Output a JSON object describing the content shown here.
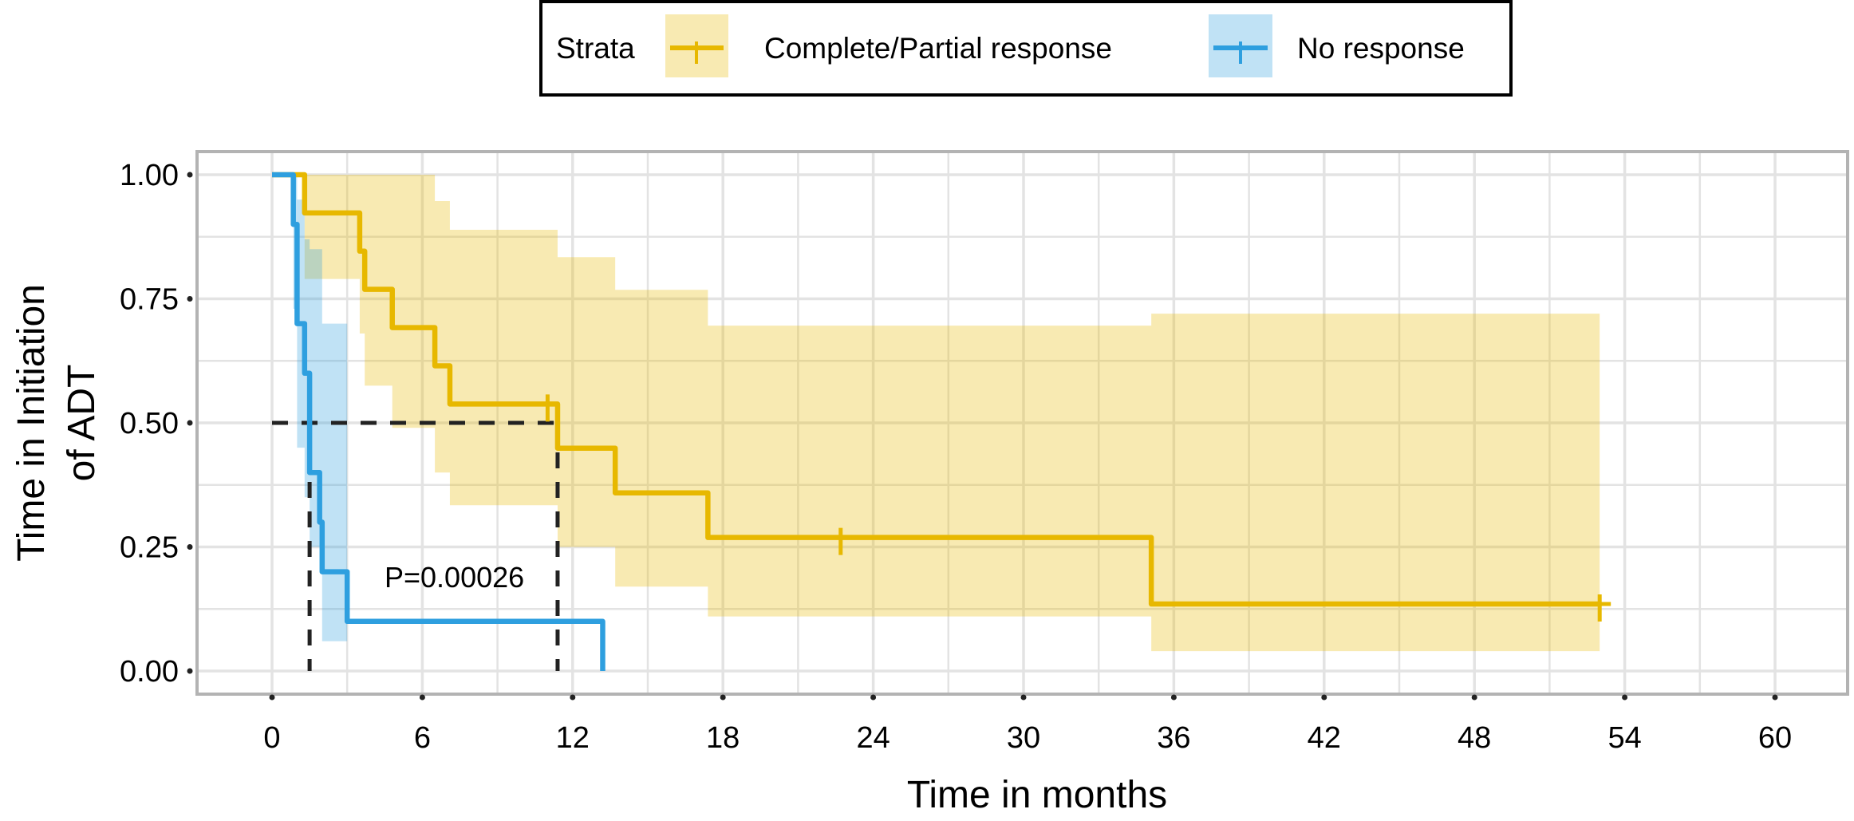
{
  "chart_data": {
    "type": "line",
    "subtype": "kaplan-meier step curves with confidence bands",
    "xlabel": "Time in months",
    "ylabel": [
      "Time in Initiation",
      "of ADT"
    ],
    "xlim": [
      0,
      60
    ],
    "ylim": [
      0,
      1
    ],
    "x_ticks": [
      0,
      6,
      12,
      18,
      24,
      30,
      36,
      42,
      48,
      54,
      60
    ],
    "x_tick_labels": [
      "0",
      "6",
      "12",
      "18",
      "24",
      "30",
      "36",
      "42",
      "48",
      "54",
      "60"
    ],
    "y_ticks": [
      0,
      0.25,
      0.5,
      0.75,
      1
    ],
    "y_tick_labels": [
      "0.00",
      "0.25",
      "0.50",
      "0.75",
      "1.00"
    ],
    "grid": true,
    "legend": {
      "position": "top",
      "title": "Strata",
      "entries": [
        "Complete/Partial response",
        "No response"
      ]
    },
    "annotation": "P=0.00026",
    "median_lines": {
      "y": 0.5,
      "x": [
        1.5,
        11.4
      ]
    },
    "series": [
      {
        "name": "Complete/Partial response",
        "color": "#E7B800",
        "steps": [
          [
            0,
            1
          ],
          [
            1.3,
            0.923
          ],
          [
            3.5,
            0.846
          ],
          [
            3.7,
            0.769
          ],
          [
            4.8,
            0.692
          ],
          [
            6.5,
            0.615
          ],
          [
            7.1,
            0.538
          ],
          [
            11.4,
            0.449
          ],
          [
            13.7,
            0.359
          ],
          [
            17.4,
            0.269
          ],
          [
            35.1,
            0.135
          ]
        ],
        "end": 53,
        "censored": [
          [
            11.0,
            0.538
          ],
          [
            22.7,
            0.269
          ],
          [
            53.0,
            0.135
          ]
        ],
        "ci": [
          [
            0,
            1,
            1
          ],
          [
            1.3,
            0.79,
            1
          ],
          [
            3.5,
            0.68,
            1
          ],
          [
            3.7,
            0.575,
            1
          ],
          [
            4.8,
            0.49,
            1
          ],
          [
            6.5,
            0.4,
            0.947
          ],
          [
            7.1,
            0.334,
            0.889
          ],
          [
            11.4,
            0.25,
            0.834
          ],
          [
            13.7,
            0.17,
            0.768
          ],
          [
            17.4,
            0.11,
            0.696
          ],
          [
            35.1,
            0.04,
            0.72
          ]
        ],
        "ci_end": 53
      },
      {
        "name": "No response",
        "color": "#2E9FDF",
        "steps": [
          [
            0,
            1
          ],
          [
            0.85,
            0.9
          ],
          [
            1.0,
            0.7
          ],
          [
            1.3,
            0.6
          ],
          [
            1.5,
            0.4
          ],
          [
            1.9,
            0.3
          ],
          [
            2.0,
            0.2
          ],
          [
            3.0,
            0.1
          ],
          [
            13.2,
            0
          ]
        ],
        "end": 13.2,
        "censored": [],
        "ci": [
          [
            0,
            1,
            1
          ],
          [
            0.85,
            0.73,
            1
          ],
          [
            1.0,
            0.45,
            0.95
          ],
          [
            1.3,
            0.35,
            0.87
          ],
          [
            1.5,
            0.25,
            0.85
          ],
          [
            2.0,
            0.06,
            0.7
          ]
        ],
        "ci_end": 3.0
      }
    ]
  }
}
